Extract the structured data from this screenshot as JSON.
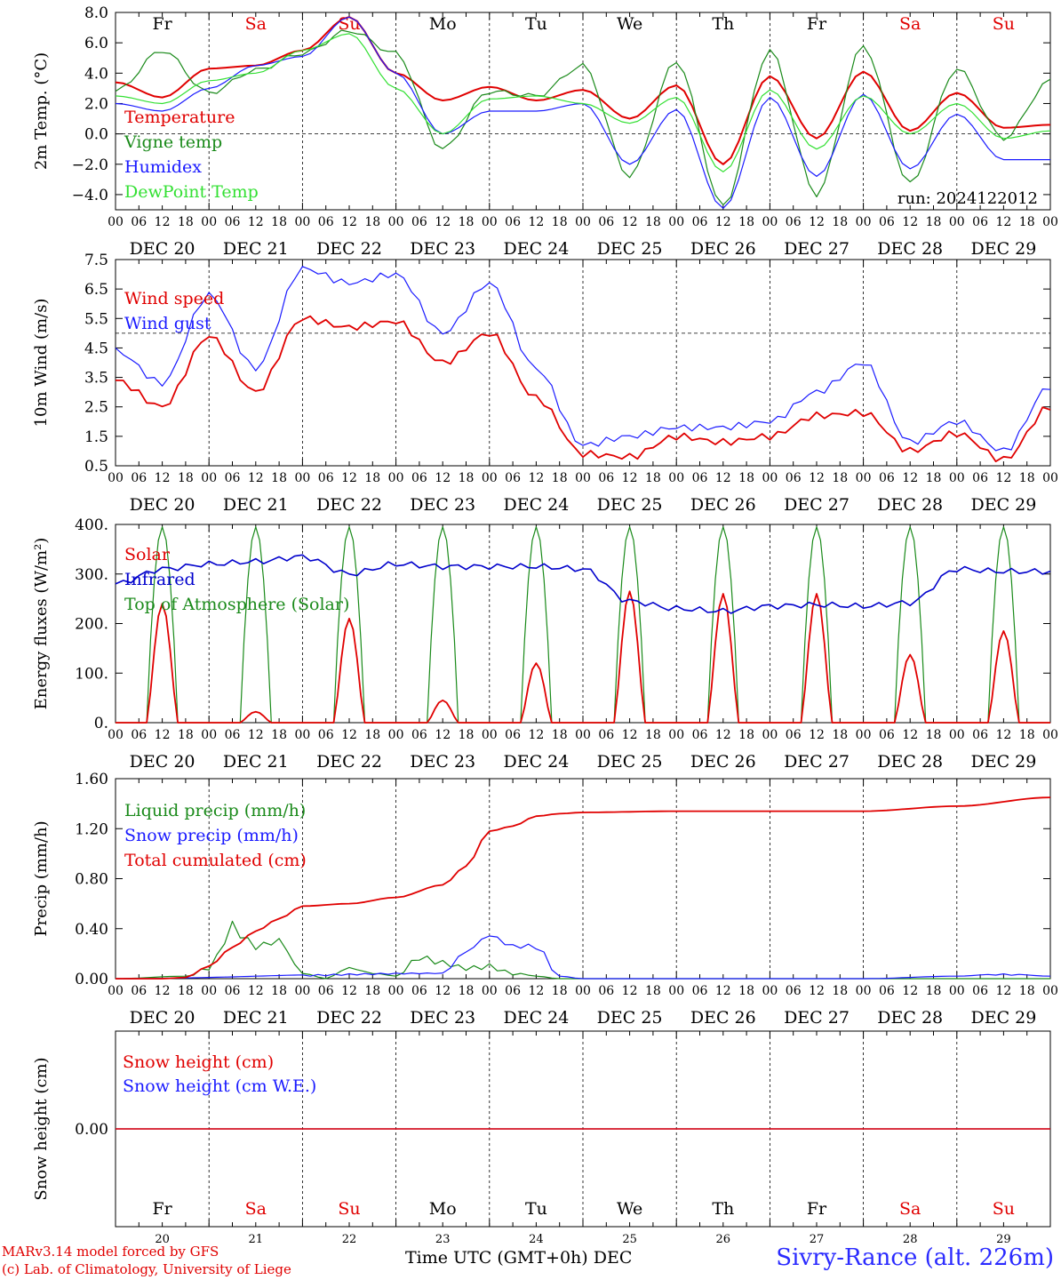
{
  "x_ticks_hours": [
    "00",
    "06",
    "12",
    "18"
  ],
  "x_tick_final": "00",
  "date_labels": [
    "DEC 20",
    "DEC 21",
    "DEC 22",
    "DEC 23",
    "DEC 24",
    "DEC 25",
    "DEC 26",
    "DEC 27",
    "DEC 28",
    "DEC 29"
  ],
  "weekdays": [
    "Fr",
    "Sa",
    "Su",
    "Mo",
    "Tu",
    "We",
    "Th",
    "Fr",
    "Sa",
    "Su"
  ],
  "weekday_colors": [
    "#000000",
    "#e00000",
    "#e00000",
    "#000000",
    "#000000",
    "#000000",
    "#000000",
    "#000000",
    "#e00000",
    "#e00000"
  ],
  "bottom_day_numbers": [
    "20",
    "21",
    "22",
    "23",
    "24",
    "25",
    "26",
    "27",
    "28",
    "29"
  ],
  "colors": {
    "red": "#e00000",
    "green": "#1a8a1a",
    "blue": "#1a1aff",
    "lightgreen": "#33e033",
    "navy": "#0000cc"
  },
  "footer": {
    "credit_line1": "MARv3.14 model forced by GFS",
    "credit_line2": "(c) Lab. of Climatology, University of Liege",
    "time_axis": "Time UTC (GMT+0h) DEC",
    "station": "Sivry-Rance (alt. 226m)"
  },
  "chart_data": [
    {
      "type": "line",
      "ylabel": "2m Temp. (°C)",
      "ylim": [
        -5,
        8
      ],
      "yticks": [
        "8.0",
        "6.0",
        "4.0",
        "2.0",
        "0.0",
        "−2.0",
        "−4.0"
      ],
      "ytick_values": [
        8,
        6,
        4,
        2,
        0,
        -2,
        -4
      ],
      "reference_line": 0,
      "annotation": "run: 2024122012",
      "x_hours": [
        0,
        12,
        24,
        36,
        48,
        60,
        72,
        84,
        96,
        108,
        120,
        132,
        144,
        156,
        168,
        180,
        192,
        204,
        216,
        228,
        240
      ],
      "series": [
        {
          "name": "Temperature",
          "color": "red",
          "values": [
            3.4,
            2.4,
            4.3,
            4.5,
            5.5,
            7.7,
            4.0,
            2.2,
            3.1,
            2.2,
            2.9,
            1.0,
            3.2,
            -2.0,
            3.8,
            -0.3,
            4.1,
            0.2,
            2.7,
            0.4,
            0.6
          ]
        },
        {
          "name": "Vigne temp",
          "color": "green",
          "values": [
            2.8,
            5.5,
            2.7,
            4.2,
            5.3,
            6.8,
            5.3,
            -1.0,
            2.8,
            2.5,
            4.5,
            -2.8,
            4.8,
            -4.8,
            5.5,
            -4.0,
            5.8,
            -3.3,
            4.3,
            -0.3,
            3.5
          ]
        },
        {
          "name": "Humidex",
          "color": "blue",
          "values": [
            2.0,
            1.5,
            3.0,
            4.5,
            5.1,
            7.7,
            4.0,
            0.0,
            1.5,
            1.5,
            2.0,
            -2.0,
            1.6,
            -4.9,
            2.4,
            -2.8,
            2.6,
            -2.3,
            1.3,
            -1.7,
            -1.7
          ]
        },
        {
          "name": "DewPoint Temp",
          "color": "lightgreen",
          "values": [
            2.5,
            2.0,
            3.5,
            4.0,
            5.5,
            6.6,
            3.0,
            0.0,
            2.3,
            2.5,
            2.0,
            0.7,
            2.4,
            -2.5,
            2.9,
            -1.0,
            2.5,
            0.0,
            2.0,
            -0.3,
            0.2
          ]
        }
      ]
    },
    {
      "type": "line",
      "ylabel": "10m Wind (m/s)",
      "ylim": [
        0.5,
        7.5
      ],
      "yticks": [
        "7.5",
        "6.5",
        "5.5",
        "4.5",
        "3.5",
        "2.5",
        "1.5",
        "0.5"
      ],
      "ytick_values": [
        7.5,
        6.5,
        5.5,
        4.5,
        3.5,
        2.5,
        1.5,
        0.5
      ],
      "reference_line": 5,
      "x_hours": [
        0,
        12,
        24,
        36,
        48,
        60,
        72,
        84,
        96,
        108,
        120,
        132,
        144,
        156,
        168,
        180,
        192,
        204,
        216,
        228,
        240
      ],
      "series": [
        {
          "name": "Wind speed",
          "color": "red",
          "values": [
            3.4,
            2.5,
            4.9,
            3.0,
            5.5,
            5.2,
            5.4,
            4.0,
            5.0,
            2.8,
            0.9,
            0.8,
            1.5,
            1.3,
            1.5,
            2.2,
            2.3,
            1.0,
            1.6,
            0.7,
            2.5
          ]
        },
        {
          "name": "Wind gust",
          "color": "blue",
          "values": [
            4.4,
            3.3,
            6.3,
            3.8,
            7.2,
            6.7,
            7.0,
            5.0,
            6.7,
            3.8,
            1.2,
            1.5,
            1.8,
            1.8,
            2.0,
            3.0,
            4.0,
            1.3,
            2.0,
            1.0,
            3.2
          ]
        }
      ]
    },
    {
      "type": "line",
      "ylabel": "Energy fluxes (W/m²)",
      "ylim": [
        0,
        400
      ],
      "yticks": [
        "400.",
        "300.",
        "200.",
        "100.",
        "0."
      ],
      "ytick_values": [
        400,
        300,
        200,
        100,
        0
      ],
      "series": [
        {
          "name": "Solar",
          "color": "red",
          "daily_peaks": [
            240,
            22,
            210,
            45,
            120,
            265,
            260,
            260,
            137,
            185
          ]
        },
        {
          "name": "Infrared",
          "color": "navy",
          "x_hours": [
            0,
            12,
            24,
            36,
            48,
            60,
            72,
            84,
            96,
            108,
            120,
            132,
            144,
            156,
            168,
            180,
            192,
            204,
            216,
            228,
            240
          ],
          "values": [
            280,
            310,
            320,
            325,
            335,
            300,
            320,
            315,
            315,
            315,
            310,
            245,
            230,
            225,
            235,
            238,
            235,
            242,
            310,
            305,
            305
          ]
        },
        {
          "name": "Top of Atmosphere (Solar)",
          "color": "green",
          "daily_peak": 395
        }
      ]
    },
    {
      "type": "line",
      "ylabel": "Precip (mm/h)",
      "ylim": [
        0,
        1.6
      ],
      "yticks": [
        "1.60",
        "1.20",
        "0.80",
        "0.40",
        "0.00"
      ],
      "ytick_values": [
        1.6,
        1.2,
        0.8,
        0.4,
        0
      ],
      "series": [
        {
          "name": "Liquid precip (mm/h)",
          "color": "green",
          "x_hours": [
            0,
            18,
            24,
            30,
            36,
            42,
            48,
            54,
            60,
            66,
            72,
            78,
            84,
            90,
            96,
            102,
            108,
            114,
            120,
            144,
            192,
            216,
            240
          ],
          "values": [
            0,
            0.02,
            0.1,
            0.48,
            0.3,
            0.35,
            0.05,
            0.0,
            0.1,
            0.05,
            0.02,
            0.2,
            0.15,
            0.1,
            0.12,
            0.05,
            0.02,
            0.0,
            0.0,
            0.0,
            0.0,
            0.0,
            0.0
          ]
        },
        {
          "name": "Snow precip (mm/h)",
          "color": "blue",
          "x_hours": [
            0,
            84,
            90,
            96,
            102,
            108,
            114,
            120,
            144,
            192,
            216,
            228,
            240
          ],
          "values": [
            0,
            0.05,
            0.25,
            0.4,
            0.3,
            0.3,
            0.02,
            0.0,
            0.0,
            0.0,
            0.02,
            0.04,
            0.02
          ]
        },
        {
          "name": "Total cumulated (cm)",
          "color": "red",
          "x_hours": [
            0,
            12,
            18,
            24,
            30,
            36,
            42,
            48,
            60,
            72,
            84,
            90,
            96,
            102,
            108,
            114,
            120,
            144,
            192,
            216,
            240
          ],
          "values": [
            0,
            0,
            0.01,
            0.1,
            0.25,
            0.38,
            0.48,
            0.58,
            0.6,
            0.65,
            0.75,
            0.9,
            1.18,
            1.22,
            1.3,
            1.32,
            1.33,
            1.34,
            1.34,
            1.38,
            1.45
          ]
        }
      ]
    },
    {
      "type": "line",
      "ylabel": "Snow height (cm)",
      "yticks": [
        "0.00"
      ],
      "ytick_values": [
        0
      ],
      "series": [
        {
          "name": "Snow height (cm)",
          "color": "red",
          "values": [
            0,
            0
          ]
        },
        {
          "name": "Snow height (cm W.E.)",
          "color": "blue",
          "values": [
            0,
            0
          ]
        }
      ]
    }
  ]
}
